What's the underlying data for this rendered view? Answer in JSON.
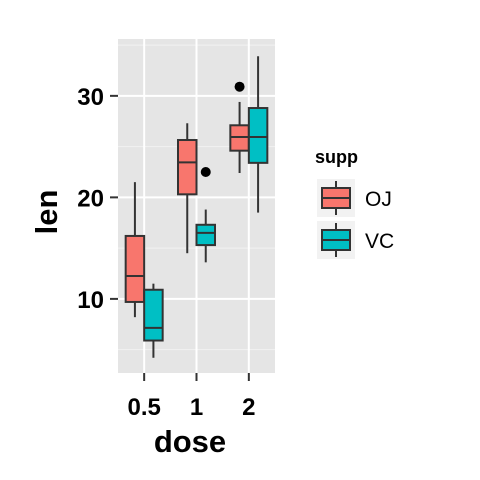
{
  "chart_data": {
    "type": "boxplot",
    "title": "",
    "xlabel": "dose",
    "ylabel": "len",
    "categories": [
      "0.5",
      "1",
      "2"
    ],
    "ylim": [
      2.7,
      35.6
    ],
    "yticks": [
      10,
      20,
      30
    ],
    "grid": true,
    "legend": {
      "title": "supp",
      "position": "right"
    },
    "series": [
      {
        "name": "OJ",
        "color": "#F8766D",
        "boxes": [
          {
            "category": "0.5",
            "min": 8.2,
            "q1": 9.7,
            "median": 12.25,
            "q3": 16.2,
            "max": 21.5,
            "outliers": []
          },
          {
            "category": "1",
            "min": 14.5,
            "q1": 20.3,
            "median": 23.45,
            "q3": 25.65,
            "max": 27.3,
            "outliers": []
          },
          {
            "category": "2",
            "min": 22.4,
            "q1": 24.6,
            "median": 25.95,
            "q3": 27.1,
            "max": 29.4,
            "outliers": [
              30.9
            ]
          }
        ]
      },
      {
        "name": "VC",
        "color": "#00BFC4",
        "boxes": [
          {
            "category": "0.5",
            "min": 4.2,
            "q1": 5.9,
            "median": 7.15,
            "q3": 10.9,
            "max": 11.5,
            "outliers": []
          },
          {
            "category": "1",
            "min": 13.6,
            "q1": 15.3,
            "median": 16.5,
            "q3": 17.3,
            "max": 18.8,
            "outliers": [
              22.5
            ]
          },
          {
            "category": "2",
            "min": 18.5,
            "q1": 23.4,
            "median": 25.95,
            "q3": 28.8,
            "max": 33.9,
            "outliers": []
          }
        ]
      }
    ]
  }
}
